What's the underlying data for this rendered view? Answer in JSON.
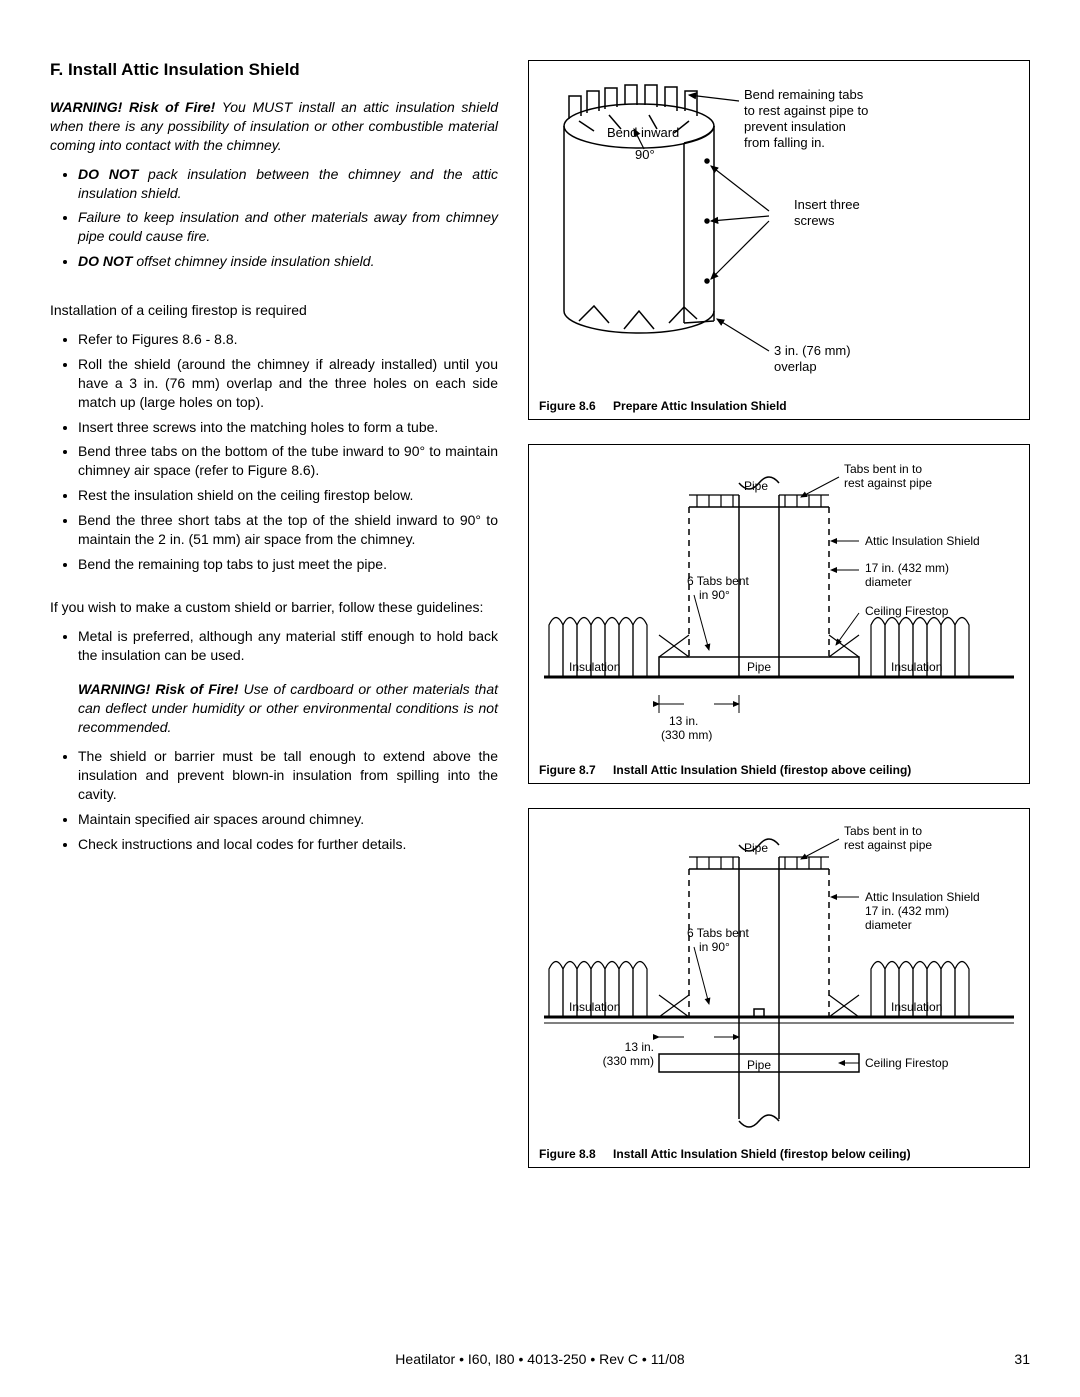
{
  "heading": "F.  Install Attic Insulation Shield",
  "warning1_prefix": "WARNING! Risk of Fire!",
  "warning1_body": " You MUST install an attic insulation shield when there is any possibility of insulation or other combustible material coming into contact with the chimney.",
  "bullets_warn": [
    {
      "prefix": "DO NOT",
      "rest": " pack insulation between the chimney and the attic insulation shield."
    },
    {
      "prefix": "",
      "rest": "Failure to keep insulation and other materials away from chimney pipe could cause fire."
    },
    {
      "prefix": "DO NOT",
      "rest": " offset chimney inside insulation shield."
    }
  ],
  "install_intro": "Installation of a ceiling firestop is required",
  "bullets_install": [
    "Refer to Figures 8.6 -  8.8.",
    "Roll the shield (around the chimney if already installed) until you have a 3 in. (76 mm) overlap and the three holes on each side match up (large holes on top).",
    "Insert three screws into the matching holes to form a tube.",
    "Bend three tabs on the bottom of the tube inward to 90° to maintain chimney air space (refer to Figure 8.6).",
    "Rest the insulation shield on the ceiling firestop below.",
    "Bend the three short tabs at the top of the shield inward to 90° to maintain the 2 in. (51 mm) air space from the chimney.",
    "Bend the remaining top tabs to just meet the pipe."
  ],
  "custom_intro": "If you wish to make a custom shield or barrier, follow these guidelines:",
  "bullets_custom1": [
    "Metal is preferred, although any material stiff enough to hold back the insulation can be used."
  ],
  "warning2_prefix": "WARNING! Risk of Fire!",
  "warning2_body": " Use of cardboard or other materials that can deflect under humidity or other environmental conditions is not recommended.",
  "bullets_custom2": [
    "The shield or barrier must be tall enough to extend above the insulation and prevent blown-in insulation from spilling into the cavity.",
    "Maintain specified air spaces around chimney.",
    "Check instructions and local codes for further details."
  ],
  "fig86": {
    "num": "Figure 8.6",
    "title": "Prepare Attic Insulation Shield",
    "labels": {
      "bendRemaining": "Bend remaining tabs to rest against pipe to prevent insulation from falling in.",
      "bendInward": "Bend inward",
      "ninety": "90°",
      "insertScrews": "Insert three screws",
      "overlap": "3 in. (76 mm) overlap"
    },
    "style": {
      "lineColor": "#000",
      "lineWidth": 1.5,
      "arrowFill": "#000",
      "fontSize": 13
    }
  },
  "fig87": {
    "num": "Figure 8.7",
    "title": "Install Attic Insulation Shield (firestop above ceiling)",
    "labels": {
      "pipe": "Pipe",
      "tabsBentRest": "Tabs bent in to rest against pipe",
      "atticShield": "Attic Insulation Shield",
      "diameter1": "17 in. (432 mm)",
      "diameter2": "diameter",
      "ceilingFirestop": "Ceiling Firestop",
      "sixTabs1": "6 Tabs bent",
      "sixTabs2": "in 90°",
      "insulation": "Insulation",
      "thirteen1": "13 in.",
      "thirteen2": "(330 mm)"
    },
    "style": {
      "lineColor": "#000",
      "lineWidth": 1.5,
      "dashPattern": "6,5",
      "fontSize": 12
    }
  },
  "fig88": {
    "num": "Figure 8.8",
    "title": "Install Attic Insulation Shield (firestop below ceiling)",
    "labels": {
      "pipe": "Pipe",
      "tabsBentRest": "Tabs bent in to rest against pipe",
      "atticShield": "Attic Insulation Shield",
      "diameter1": "17 in. (432 mm)",
      "diameter2": "diameter",
      "ceilingFirestop": "Ceiling Firestop",
      "sixTabs1": "6 Tabs bent",
      "sixTabs2": "in 90°",
      "insulation": "Insulation",
      "thirteen1": "13 in.",
      "thirteen2": "(330 mm)"
    },
    "style": {
      "lineColor": "#000",
      "lineWidth": 1.5,
      "dashPattern": "6,5",
      "fontSize": 12
    }
  },
  "footer": {
    "center": "Heatilator • I60, I80 • 4013-250 • Rev C • 11/08",
    "page": "31"
  }
}
